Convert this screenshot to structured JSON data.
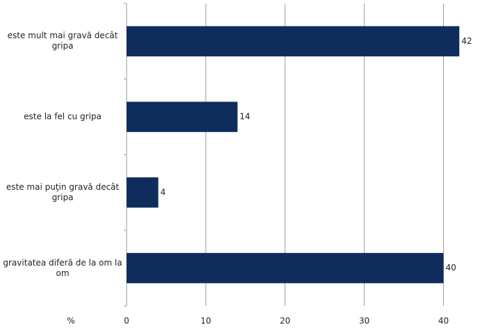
{
  "chart_data": {
    "type": "bar",
    "orientation": "horizontal",
    "categories": [
      "este mult mai gravă decât gripa",
      "este la fel cu gripa",
      "este mai puţin gravă decât gripa",
      "gravitatea diferă de la om la om"
    ],
    "values": [
      42,
      14,
      4,
      40
    ],
    "color": "#0f2d5c",
    "xlabel": "%",
    "xlim": [
      0,
      44
    ],
    "xticks": [
      0,
      10,
      20,
      30,
      40
    ],
    "grid": true
  }
}
